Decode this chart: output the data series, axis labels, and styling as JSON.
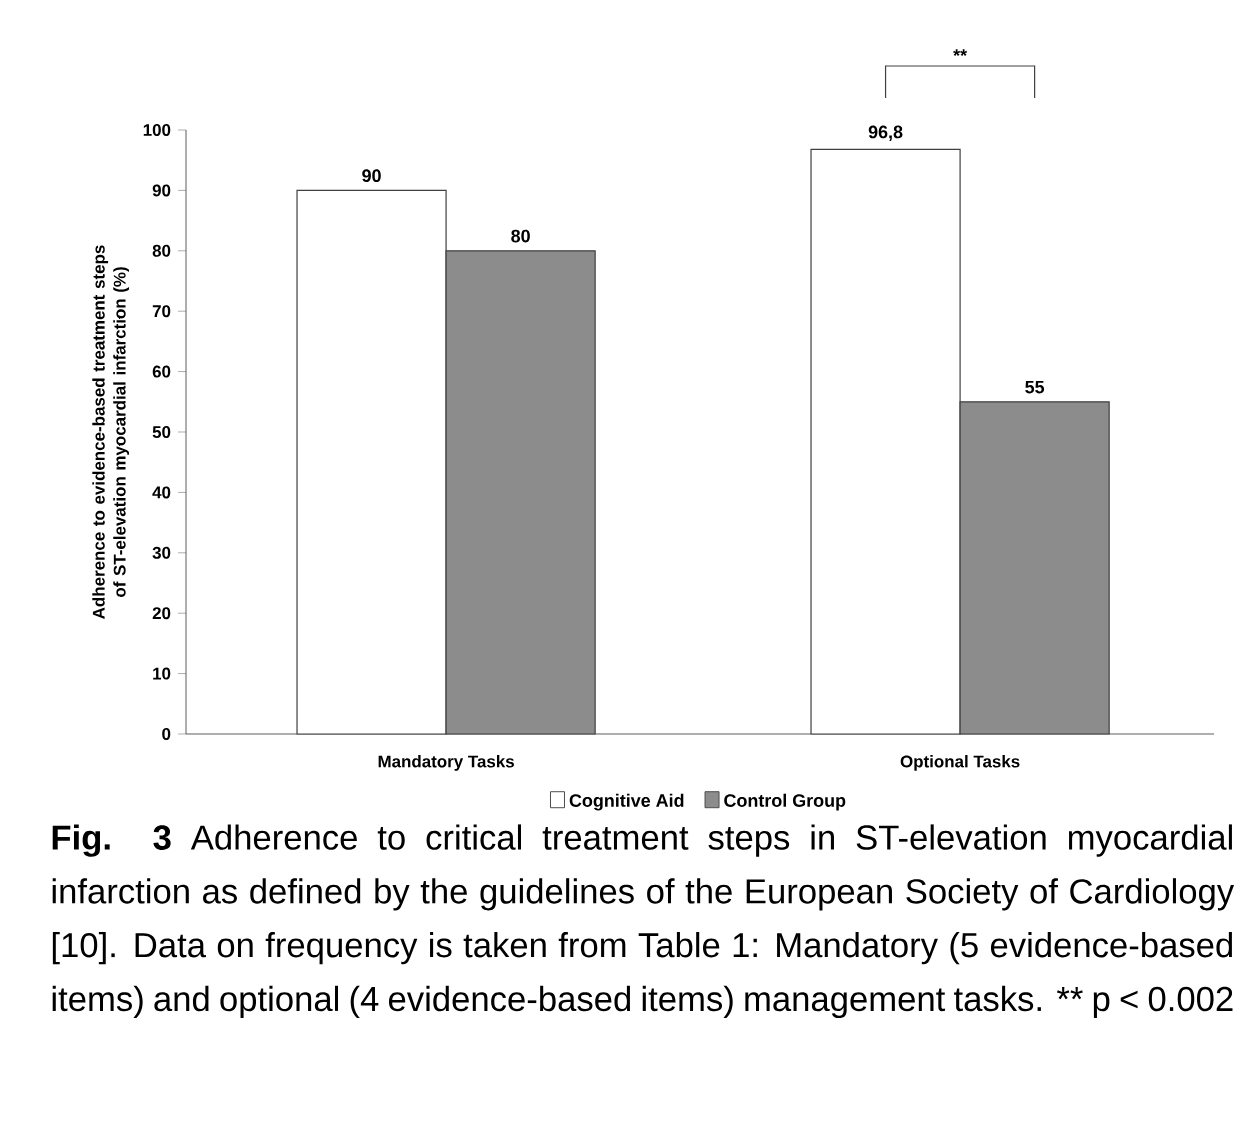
{
  "chart_data": {
    "type": "bar",
    "ylabel": "Adherence to evidence-based treatment steps of ST-elevation myocardial infarction (%)",
    "categories": [
      "Mandatory Tasks",
      "Optional Tasks"
    ],
    "series": [
      {
        "name": "Cognitive Aid",
        "color": "#ffffff",
        "values": [
          90,
          96.8
        ],
        "value_labels": [
          "90",
          "96,8"
        ]
      },
      {
        "name": "Control Group",
        "color": "#8c8c8c",
        "values": [
          80,
          55
        ],
        "value_labels": [
          "80",
          "55"
        ]
      }
    ],
    "ylim": [
      0,
      100
    ],
    "yticks": [
      0,
      10,
      20,
      30,
      40,
      50,
      60,
      70,
      80,
      90,
      100
    ],
    "legend": "bottom",
    "annotations": [
      "**",
      "Fig. 3",
      "Adherence to critical treatment steps in ST-elevation myocardial infarction as defined by the guidelines of the European Society of Cardiology [10]. Data on frequency is taken from Table 1: Mandatory (5 evidence-based items) and optional (4 evidence-based items) management tasks. ** p < 0.002"
    ]
  }
}
